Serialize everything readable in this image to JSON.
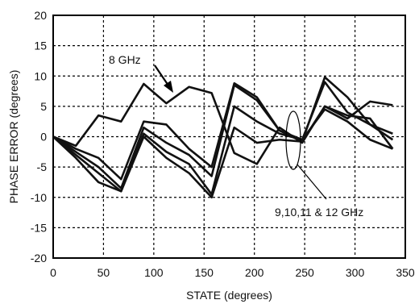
{
  "chart_data": {
    "type": "line",
    "title": "",
    "xlabel": "STATE (degrees)",
    "ylabel": "PHASE ERROR  (degrees)",
    "xlim": [
      0,
      350
    ],
    "ylim": [
      -20,
      20
    ],
    "xticks": [
      "0",
      "50",
      "100",
      "150",
      "200",
      "250",
      "300",
      "350"
    ],
    "yticks": [
      "20",
      "15",
      "10",
      "5",
      "0",
      "-5",
      "-10",
      "-15",
      "-20"
    ],
    "x": [
      0,
      22.5,
      45,
      67.5,
      90,
      112.5,
      135,
      157.5,
      180,
      202.5,
      225,
      247.5,
      270,
      292.5,
      315,
      337.5
    ],
    "grid": true,
    "series": [
      {
        "values": [
          0,
          -1.5,
          3.5,
          2.5,
          8.7,
          5.5,
          8.2,
          7.2,
          -2.7,
          -4.5,
          1.5,
          -1.0,
          5.0,
          3.0,
          5.8,
          5.2
        ]
      },
      {
        "values": [
          0,
          -2.0,
          -3.5,
          -7.0,
          2.5,
          2.0,
          -2.0,
          -5.0,
          8.8,
          6.5,
          1.0,
          -0.8,
          9.8,
          6.5,
          2.0,
          -0.5
        ]
      },
      {
        "values": [
          0,
          -2.5,
          -5.0,
          -8.5,
          1.5,
          -1.0,
          -3.0,
          -6.5,
          8.5,
          6.0,
          1.0,
          -0.5,
          9.0,
          4.0,
          2.0,
          0.5
        ]
      },
      {
        "values": [
          0,
          -3.0,
          -6.0,
          -9.0,
          0.5,
          -2.5,
          -4.5,
          -9.5,
          5.0,
          2.5,
          0.5,
          -0.5,
          4.5,
          2.5,
          -0.5,
          -2.0
        ]
      },
      {
        "values": [
          0,
          -3.5,
          -7.5,
          -9.0,
          0.0,
          -3.5,
          -6.0,
          -10.0,
          1.5,
          -1.0,
          -0.5,
          -0.8,
          5.0,
          3.5,
          3.0,
          -2.0
        ]
      }
    ],
    "annotations": [
      {
        "text": "8 GHz"
      },
      {
        "text": "9,10,11 & 12 GHz"
      }
    ]
  }
}
